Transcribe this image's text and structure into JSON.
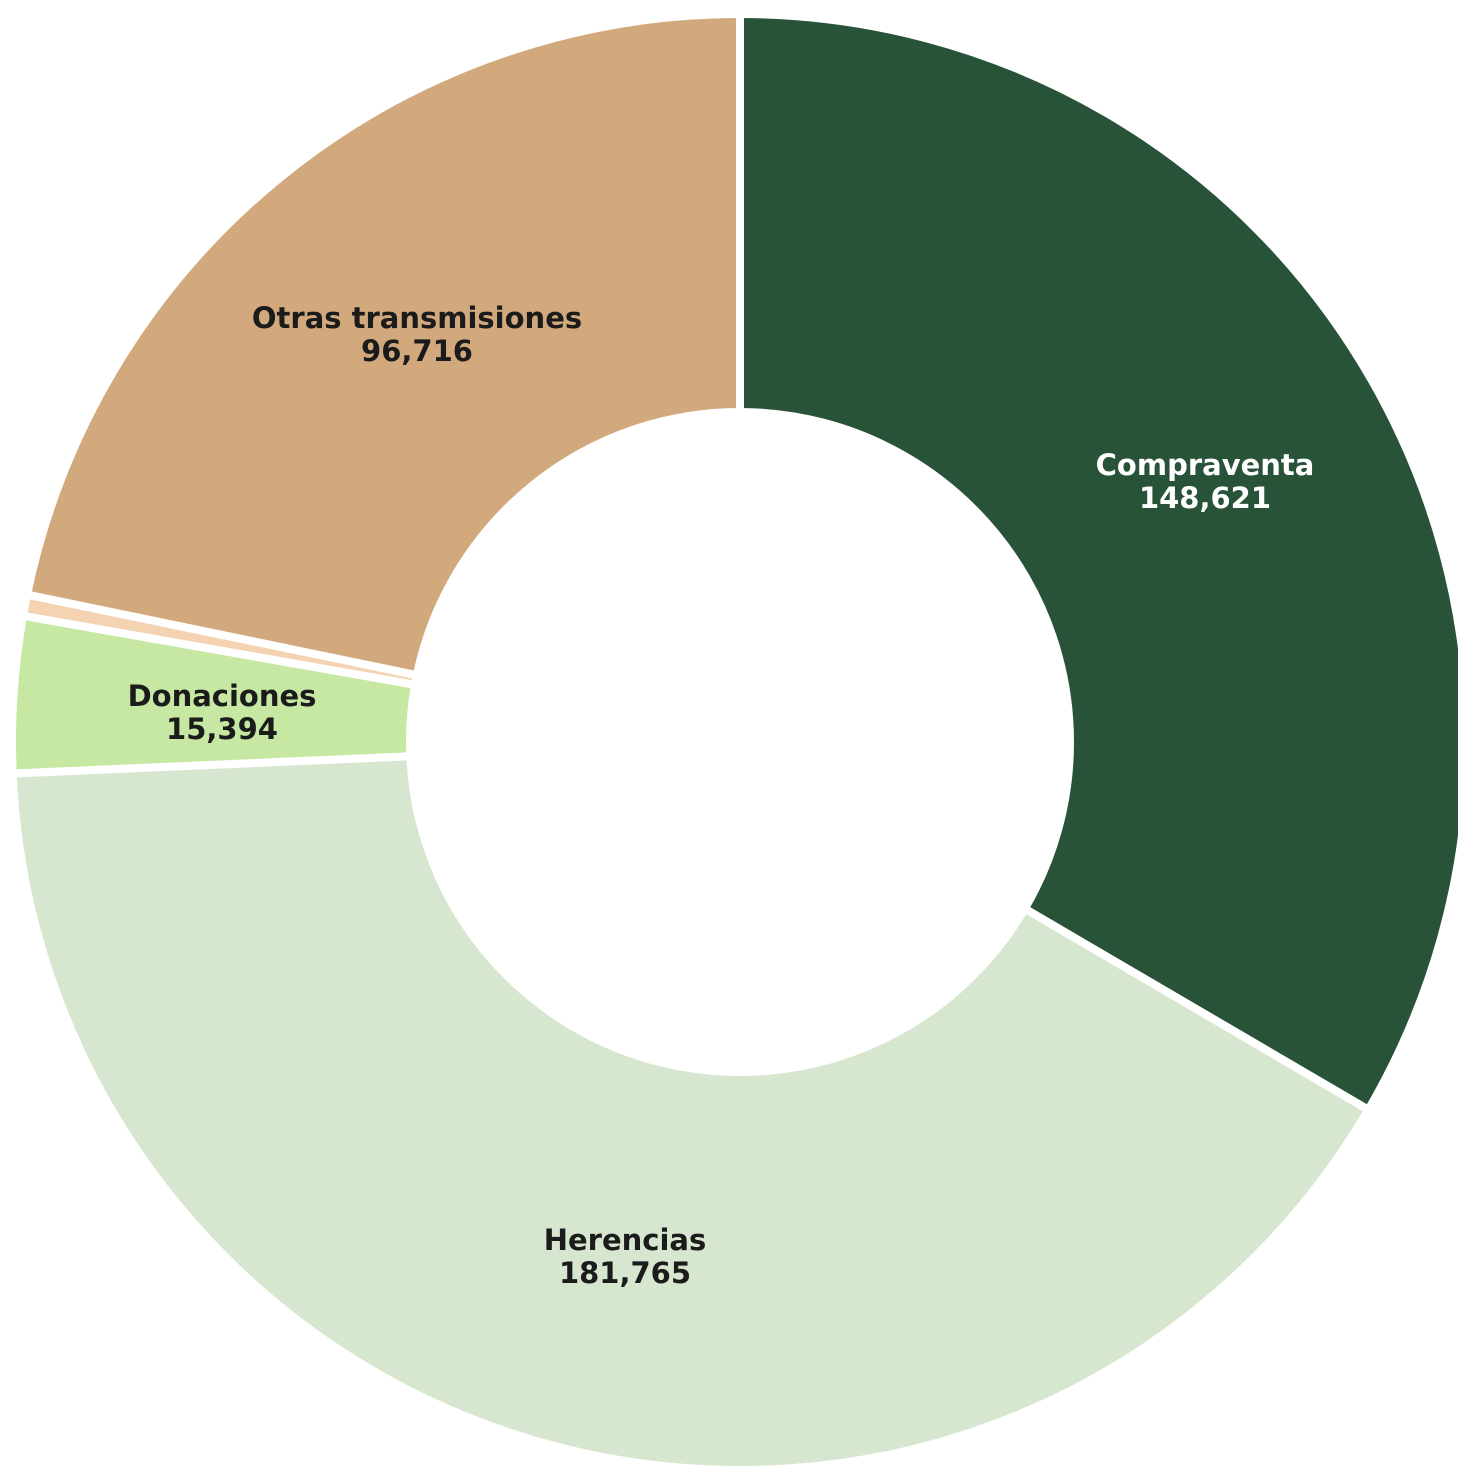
{
  "chart_data": {
    "type": "pie",
    "variant": "donut",
    "title": "",
    "legend": "none",
    "slices": [
      {
        "label": "Compraventa",
        "value": 148621,
        "value_label": "148,621",
        "color": "#285339",
        "text_color": "#ffffff"
      },
      {
        "label": "Herencias",
        "value": 181765,
        "value_label": "181,765",
        "color": "#d7e6cf",
        "text_color": "#1b1b1b"
      },
      {
        "label": "Donaciones",
        "value": 15394,
        "value_label": "15,394",
        "color": "#c6e8a3",
        "text_color": "#1b1b1b"
      },
      {
        "label": "",
        "value": 2100,
        "value_label": "",
        "color": "#f4d3b3",
        "text_color": "#1b1b1b"
      },
      {
        "label": "Otras transmisiones",
        "value": 96716,
        "value_label": "96,716",
        "color": "#d2a97c",
        "text_color": "#1b1b1b"
      }
    ]
  }
}
